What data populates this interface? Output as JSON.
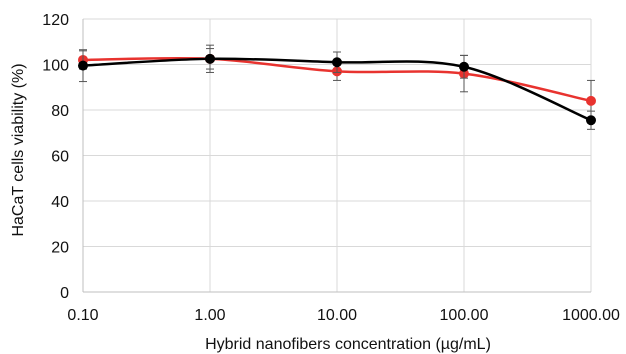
{
  "chart_data": {
    "type": "line",
    "title": "",
    "xlabel": "Hybrid nanofibers concentration (µg/mL)",
    "ylabel": "HaCaT cells viability (%)",
    "x_scale": "log",
    "x_ticks": [
      0.1,
      1,
      10,
      100,
      1000
    ],
    "x_tick_labels": [
      "0.10",
      "1.00",
      "10.00",
      "100.00",
      "1000.00"
    ],
    "ylim": [
      0,
      120
    ],
    "y_ticks": [
      0,
      20,
      40,
      60,
      80,
      100,
      120
    ],
    "grid": true,
    "legend": "none",
    "series": [
      {
        "color": "#e8332f",
        "x": [
          0.1,
          1,
          10,
          100,
          1000
        ],
        "y": [
          102,
          102.5,
          97,
          96,
          84
        ],
        "error": [
          4,
          6,
          4,
          8,
          9
        ]
      },
      {
        "color": "#000000",
        "x": [
          0.1,
          1,
          10,
          100,
          1000
        ],
        "y": [
          99.5,
          102.5,
          101,
          99,
          75.5
        ],
        "error": [
          7,
          4.5,
          4.5,
          5,
          4
        ]
      }
    ]
  }
}
